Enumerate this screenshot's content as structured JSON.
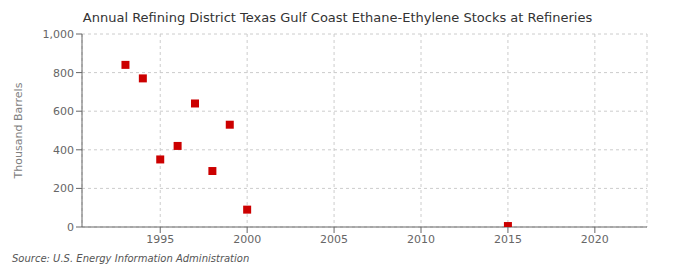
{
  "chart_data": {
    "type": "scatter",
    "title": "Annual Refining District Texas Gulf Coast Ethane-Ethylene Stocks at Refineries",
    "ylabel": "Thousand Barrels",
    "annotations": [
      "Source: U.S. Energy Information Administration"
    ],
    "x": [
      1993,
      1994,
      1995,
      1996,
      1997,
      1998,
      1999,
      2000,
      2015
    ],
    "values": [
      840,
      770,
      350,
      420,
      640,
      290,
      530,
      90,
      5
    ],
    "color": "#cc0000",
    "marker": "square",
    "xlim": [
      1990.5,
      2023
    ],
    "ylim": [
      0,
      1000
    ],
    "xticks": [
      1995,
      2000,
      2005,
      2010,
      2015,
      2020
    ],
    "yticks": [
      0,
      200,
      400,
      600,
      800,
      {
        "value": 1000,
        "label": "1,000"
      }
    ],
    "grid": true
  }
}
